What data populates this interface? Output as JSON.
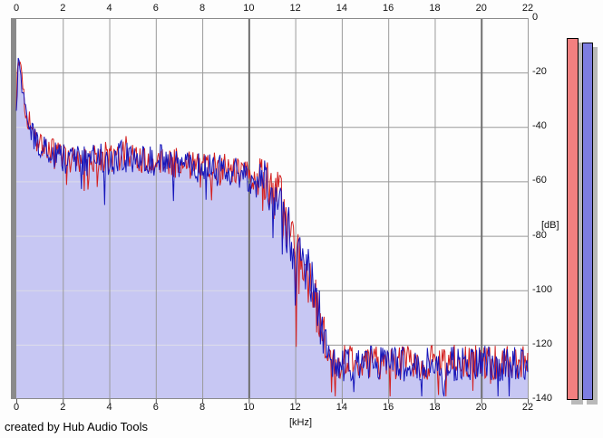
{
  "window": {
    "credit": "created by Hub Audio Tools"
  },
  "chart_data": {
    "type": "area",
    "title": "",
    "xlabel": "[kHz]",
    "ylabel": "[dB]",
    "x_range": [
      0,
      22
    ],
    "y_range": [
      -140,
      0
    ],
    "x_ticks": [
      0,
      2,
      4,
      6,
      8,
      10,
      12,
      14,
      16,
      18,
      20,
      22
    ],
    "x_tick_labels": [
      "0",
      "2",
      "4",
      "6",
      "8",
      "10",
      "12",
      "14",
      "16",
      "18",
      "20",
      "22"
    ],
    "y_ticks": [
      0,
      -20,
      -40,
      -60,
      -80,
      -100,
      -120,
      -140
    ],
    "y_tick_labels": [
      "0",
      "-20",
      "-40",
      "-60",
      "-80",
      "-100",
      "-120",
      "-140"
    ],
    "grid": "on",
    "major_x_gridlines": [
      0,
      10,
      20
    ],
    "legend": "none",
    "step_khz": 0.04,
    "deep_dip_prob": 0.05,
    "deep_dip_scale": 2.2,
    "up_spike_prob": 0.04,
    "envelope_db": [
      [
        0,
        -36
      ],
      [
        0.04,
        -24
      ],
      [
        0.08,
        -16
      ],
      [
        0.12,
        -15
      ],
      [
        0.16,
        -18
      ],
      [
        0.2,
        -21
      ],
      [
        0.25,
        -26
      ],
      [
        0.3,
        -30
      ],
      [
        0.4,
        -34
      ],
      [
        0.5,
        -37
      ],
      [
        0.6,
        -40
      ],
      [
        0.8,
        -44
      ],
      [
        1,
        -46
      ],
      [
        1.2,
        -48
      ],
      [
        1.5,
        -50
      ],
      [
        2,
        -52
      ],
      [
        2.5,
        -53
      ],
      [
        3,
        -53
      ],
      [
        3.5,
        -52
      ],
      [
        4,
        -52
      ],
      [
        4.5,
        -51
      ],
      [
        5,
        -51
      ],
      [
        5.5,
        -52
      ],
      [
        6,
        -52
      ],
      [
        6.5,
        -53
      ],
      [
        7,
        -54
      ],
      [
        7.5,
        -54
      ],
      [
        8,
        -55
      ],
      [
        8.5,
        -56
      ],
      [
        9,
        -56
      ],
      [
        9.5,
        -57
      ],
      [
        10,
        -58
      ],
      [
        10.4,
        -59
      ],
      [
        10.8,
        -61
      ],
      [
        11.2,
        -66
      ],
      [
        11.5,
        -72
      ],
      [
        11.8,
        -80
      ],
      [
        12,
        -86
      ],
      [
        12.3,
        -93
      ],
      [
        12.6,
        -97
      ],
      [
        12.9,
        -105
      ],
      [
        13.1,
        -112
      ],
      [
        13.3,
        -119
      ],
      [
        13.5,
        -124
      ],
      [
        13.7,
        -127
      ],
      [
        14.5,
        -127
      ],
      [
        16,
        -127
      ],
      [
        18,
        -127
      ],
      [
        20,
        -127
      ],
      [
        22,
        -127
      ]
    ],
    "noise_amp_db": [
      [
        0,
        5
      ],
      [
        1,
        5
      ],
      [
        2,
        6
      ],
      [
        9,
        6
      ],
      [
        10,
        6.5
      ],
      [
        10.6,
        8
      ],
      [
        11,
        10
      ],
      [
        11.5,
        12
      ],
      [
        12,
        13
      ],
      [
        12.6,
        12
      ],
      [
        13.2,
        9
      ],
      [
        13.6,
        7
      ],
      [
        14,
        6.5
      ],
      [
        22,
        6.5
      ]
    ],
    "series": [
      {
        "name": "spectrum-channel-2",
        "color": "#d32020",
        "seed": 424242,
        "offset_db": 0.5,
        "fill": null
      },
      {
        "name": "spectrum-channel-1",
        "color": "#1717bb",
        "seed": 1234567,
        "offset_db": 0,
        "fill": "#c7c7f3"
      }
    ],
    "colors": {
      "grid_h": "#999999",
      "grid_h_over_fill": "#dcdce8",
      "grid_v_minor": "#9a9a9a",
      "grid_v_major": "#6f6f6f",
      "border": "#8a8a8a",
      "axis_wall": "#8a8a8a",
      "tick": "#555555"
    }
  },
  "meters": {
    "shadow_color": "#b9b9b9",
    "bars": [
      {
        "name": "level-meter-left",
        "color": "#f28080",
        "value_db": -7.3
      },
      {
        "name": "level-meter-right",
        "color": "#7d7de0",
        "value_db": -9
      }
    ]
  }
}
